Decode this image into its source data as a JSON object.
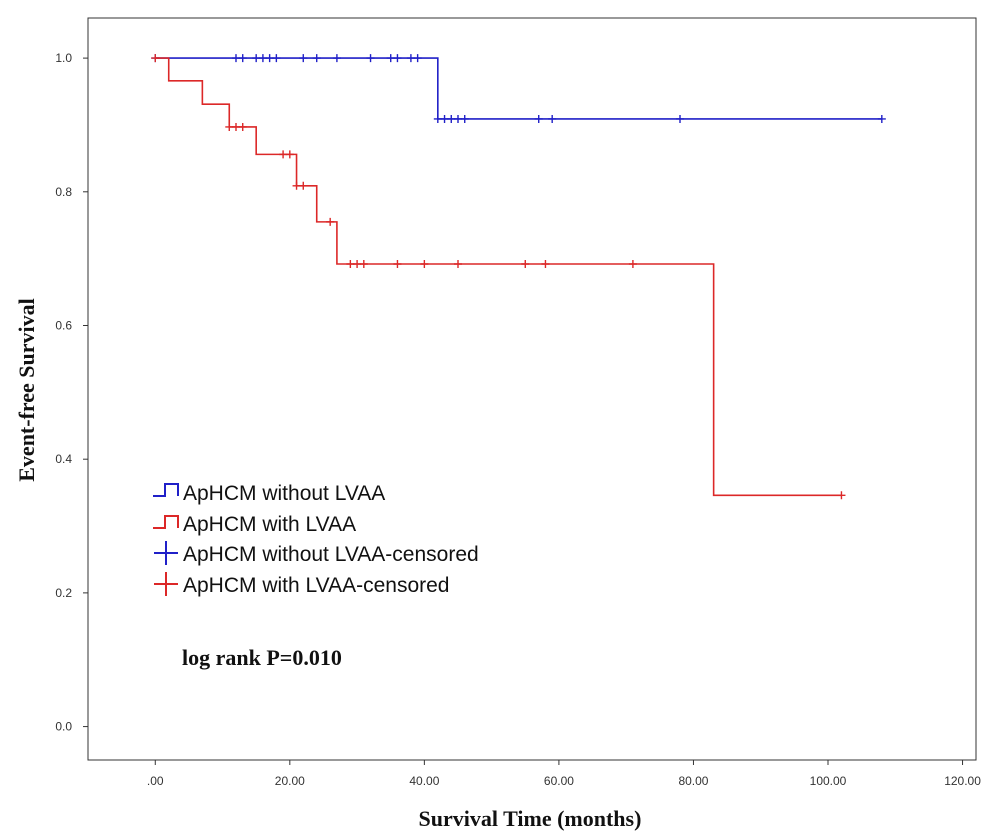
{
  "chart_data": {
    "type": "line",
    "subtype": "kaplan-meier",
    "xlabel": "Survival Time (months)",
    "ylabel": "Event-free Survival",
    "xlim": [
      -10,
      122
    ],
    "ylim": [
      -0.05,
      1.06
    ],
    "x_ticks": [
      ".00",
      "20.00",
      "40.00",
      "60.00",
      "80.00",
      "100.00",
      "120.00"
    ],
    "x_tick_values": [
      0,
      20,
      40,
      60,
      80,
      100,
      120
    ],
    "y_ticks": [
      "0.0",
      "0.2",
      "0.4",
      "0.6",
      "0.8",
      "1.0"
    ],
    "y_tick_values": [
      0,
      0.2,
      0.4,
      0.6,
      0.8,
      1.0
    ],
    "annotation": "log rank P=0.010",
    "legend": [
      {
        "label": "ApHCM without LVAA",
        "symbol": "step",
        "color": "#2020c8"
      },
      {
        "label": "ApHCM with LVAA",
        "symbol": "step",
        "color": "#dc2828"
      },
      {
        "label": "ApHCM without LVAA-censored",
        "symbol": "plus",
        "color": "#2020c8"
      },
      {
        "label": "ApHCM with LVAA-censored",
        "symbol": "plus",
        "color": "#dc2828"
      }
    ],
    "series": [
      {
        "name": "ApHCM without LVAA",
        "color": "#2020c8",
        "steps": [
          [
            0,
            1.0
          ],
          [
            42,
            0.909
          ],
          [
            108,
            0.909
          ]
        ],
        "censored": [
          [
            0,
            1.0
          ],
          [
            12,
            1.0
          ],
          [
            13,
            1.0
          ],
          [
            15,
            1.0
          ],
          [
            16,
            1.0
          ],
          [
            17,
            1.0
          ],
          [
            18,
            1.0
          ],
          [
            22,
            1.0
          ],
          [
            24,
            1.0
          ],
          [
            27,
            1.0
          ],
          [
            32,
            1.0
          ],
          [
            35,
            1.0
          ],
          [
            36,
            1.0
          ],
          [
            38,
            1.0
          ],
          [
            39,
            1.0
          ],
          [
            42,
            0.909
          ],
          [
            43,
            0.909
          ],
          [
            44,
            0.909
          ],
          [
            45,
            0.909
          ],
          [
            46,
            0.909
          ],
          [
            57,
            0.909
          ],
          [
            59,
            0.909
          ],
          [
            78,
            0.909
          ],
          [
            108,
            0.909
          ]
        ]
      },
      {
        "name": "ApHCM with LVAA",
        "color": "#dc2828",
        "steps": [
          [
            0,
            1.0
          ],
          [
            2,
            0.966
          ],
          [
            7,
            0.931
          ],
          [
            11,
            0.897
          ],
          [
            15,
            0.856
          ],
          [
            21,
            0.809
          ],
          [
            24,
            0.755
          ],
          [
            27,
            0.692
          ],
          [
            83,
            0.346
          ],
          [
            102,
            0.346
          ]
        ],
        "censored": [
          [
            0,
            1.0
          ],
          [
            11,
            0.897
          ],
          [
            12,
            0.897
          ],
          [
            13,
            0.897
          ],
          [
            19,
            0.856
          ],
          [
            20,
            0.856
          ],
          [
            21,
            0.809
          ],
          [
            22,
            0.809
          ],
          [
            26,
            0.755
          ],
          [
            29,
            0.692
          ],
          [
            30,
            0.692
          ],
          [
            31,
            0.692
          ],
          [
            36,
            0.692
          ],
          [
            40,
            0.692
          ],
          [
            45,
            0.692
          ],
          [
            55,
            0.692
          ],
          [
            58,
            0.692
          ],
          [
            71,
            0.692
          ],
          [
            102,
            0.346
          ]
        ]
      }
    ]
  }
}
